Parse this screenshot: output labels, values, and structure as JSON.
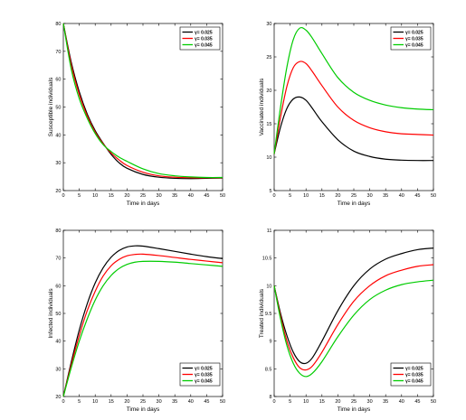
{
  "chart_data": [
    {
      "type": "line",
      "xlabel": "Time in days",
      "ylabel": "Susceptible individuals",
      "xlim": [
        0,
        50
      ],
      "ylim": [
        20,
        80
      ],
      "xticks": [
        0,
        5,
        10,
        15,
        20,
        25,
        30,
        35,
        40,
        45,
        50
      ],
      "yticks": [
        20,
        30,
        40,
        50,
        60,
        70,
        80
      ],
      "grid": false,
      "legend_position": "top-right",
      "x": [
        0,
        2.5,
        5,
        7.5,
        10,
        12.5,
        15,
        17.5,
        20,
        25,
        30,
        35,
        40,
        45,
        50
      ],
      "series": [
        {
          "name": "γ= 0.025",
          "color": "#000000",
          "values": [
            80,
            66,
            55.5,
            47.5,
            41.5,
            37,
            33,
            30,
            28,
            25.8,
            24.8,
            24.4,
            24.3,
            24.4,
            24.5
          ]
        },
        {
          "name": "γ= 0.035",
          "color": "#ff0000",
          "values": [
            80,
            65,
            54.5,
            46.8,
            41,
            36.8,
            33.5,
            31,
            29,
            26.6,
            25.3,
            24.8,
            24.6,
            24.6,
            24.6
          ]
        },
        {
          "name": "γ= 0.045",
          "color": "#00cc00",
          "values": [
            80,
            63.5,
            53,
            46,
            40.5,
            36.5,
            34,
            32,
            30.5,
            27.8,
            26.1,
            25.3,
            24.9,
            24.7,
            24.7
          ]
        }
      ]
    },
    {
      "type": "line",
      "xlabel": "Time in days",
      "ylabel": "Vaccinated individuals",
      "xlim": [
        0,
        50
      ],
      "ylim": [
        5,
        30
      ],
      "xticks": [
        0,
        5,
        10,
        15,
        20,
        25,
        30,
        35,
        40,
        45,
        50
      ],
      "yticks": [
        5,
        10,
        15,
        20,
        25,
        30
      ],
      "grid": false,
      "legend_position": "top-right",
      "x": [
        0,
        2,
        4,
        6,
        8,
        10,
        12,
        15,
        20,
        25,
        30,
        35,
        40,
        45,
        50
      ],
      "series": [
        {
          "name": "γ= 0.025",
          "color": "#000000",
          "values": [
            10.5,
            14.5,
            17.3,
            18.7,
            19,
            18.5,
            17.3,
            15.3,
            12.6,
            10.9,
            10.1,
            9.7,
            9.55,
            9.5,
            9.5
          ]
        },
        {
          "name": "γ= 0.035",
          "color": "#ff0000",
          "values": [
            10.5,
            16,
            20.6,
            23.4,
            24.3,
            24,
            22.8,
            20.7,
            17.5,
            15.5,
            14.4,
            13.8,
            13.5,
            13.4,
            13.3
          ]
        },
        {
          "name": "γ= 0.045",
          "color": "#00cc00",
          "values": [
            10.5,
            17.5,
            23.5,
            27.6,
            29.3,
            29,
            27.8,
            25.5,
            21.9,
            19.7,
            18.5,
            17.8,
            17.4,
            17.2,
            17.1
          ]
        }
      ]
    },
    {
      "type": "line",
      "xlabel": "Time in days",
      "ylabel": "Infected individuals",
      "xlim": [
        0,
        50
      ],
      "ylim": [
        20,
        80
      ],
      "xticks": [
        0,
        5,
        10,
        15,
        20,
        25,
        30,
        35,
        40,
        45,
        50
      ],
      "yticks": [
        20,
        30,
        40,
        50,
        60,
        70,
        80
      ],
      "grid": false,
      "legend_position": "bottom-right",
      "x": [
        0,
        2.5,
        5,
        7.5,
        10,
        12.5,
        15,
        17.5,
        20,
        22.5,
        25,
        30,
        35,
        40,
        45,
        50
      ],
      "series": [
        {
          "name": "γ= 0.025",
          "color": "#000000",
          "values": [
            20,
            32.5,
            44,
            53.5,
            61,
            66.5,
            70.3,
            72.7,
            74,
            74.4,
            74.3,
            73.4,
            72.4,
            71.4,
            70.5,
            69.8
          ]
        },
        {
          "name": "γ= 0.035",
          "color": "#ff0000",
          "values": [
            20,
            31.5,
            42,
            51,
            58,
            63.5,
            67.2,
            69.5,
            70.8,
            71.3,
            71.4,
            70.9,
            70.2,
            69.5,
            68.9,
            68.3
          ]
        },
        {
          "name": "γ= 0.045",
          "color": "#00cc00",
          "values": [
            20,
            30.5,
            40,
            48,
            54.8,
            60,
            63.7,
            66.2,
            67.7,
            68.5,
            68.8,
            68.8,
            68.5,
            68,
            67.5,
            67
          ]
        }
      ]
    },
    {
      "type": "line",
      "xlabel": "Time in days",
      "ylabel": "Treated individuals",
      "xlim": [
        0,
        50
      ],
      "ylim": [
        8,
        11
      ],
      "xticks": [
        0,
        5,
        10,
        15,
        20,
        25,
        30,
        35,
        40,
        45,
        50
      ],
      "yticks": [
        8,
        8.5,
        9,
        9.5,
        10,
        10.5,
        11
      ],
      "grid": false,
      "legend_position": "bottom-right",
      "x": [
        0,
        2,
        4,
        6,
        8,
        10,
        12,
        15,
        20,
        25,
        30,
        35,
        40,
        45,
        50
      ],
      "series": [
        {
          "name": "γ= 0.025",
          "color": "#000000",
          "values": [
            10,
            9.5,
            9.1,
            8.8,
            8.63,
            8.6,
            8.7,
            9.0,
            9.55,
            10.0,
            10.3,
            10.48,
            10.58,
            10.65,
            10.68
          ]
        },
        {
          "name": "γ= 0.035",
          "color": "#ff0000",
          "values": [
            10,
            9.45,
            9.0,
            8.7,
            8.52,
            8.48,
            8.55,
            8.8,
            9.3,
            9.72,
            10.0,
            10.18,
            10.28,
            10.35,
            10.38
          ]
        },
        {
          "name": "γ= 0.045",
          "color": "#00cc00",
          "values": [
            10,
            9.4,
            8.92,
            8.6,
            8.42,
            8.36,
            8.42,
            8.63,
            9.08,
            9.47,
            9.75,
            9.92,
            10.02,
            10.07,
            10.1
          ]
        }
      ]
    }
  ]
}
